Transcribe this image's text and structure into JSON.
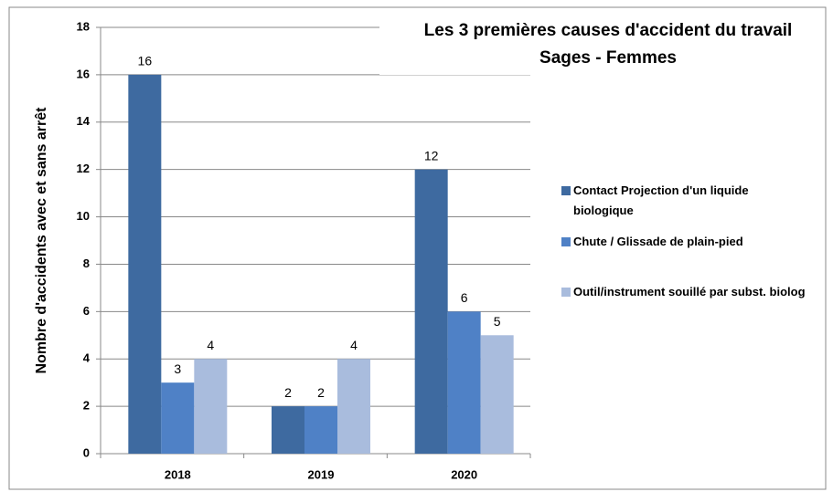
{
  "chart_data": {
    "type": "bar",
    "title": "Les 3 premières causes d'accident du travail",
    "subtitle": "Sages - Femmes",
    "y_label": "Nombre d'accidents avec et sans arrêt",
    "categories": [
      "2018",
      "2019",
      "2020"
    ],
    "series": [
      {
        "name": "Contact Projection d'un liquide biologique",
        "color": "#3e6aa0",
        "values": [
          16,
          2,
          12
        ]
      },
      {
        "name": "Chute / Glissade de plain-pied",
        "color": "#4f81c6",
        "values": [
          3,
          2,
          6
        ]
      },
      {
        "name": "Outil/instrument souillé par subst. biolog",
        "color": "#a9bcdd",
        "values": [
          4,
          4,
          5
        ]
      }
    ],
    "ylim": [
      0,
      18
    ],
    "yticks": [
      0,
      2,
      4,
      6,
      8,
      10,
      12,
      14,
      16,
      18
    ],
    "grid": true,
    "legend": "right"
  }
}
